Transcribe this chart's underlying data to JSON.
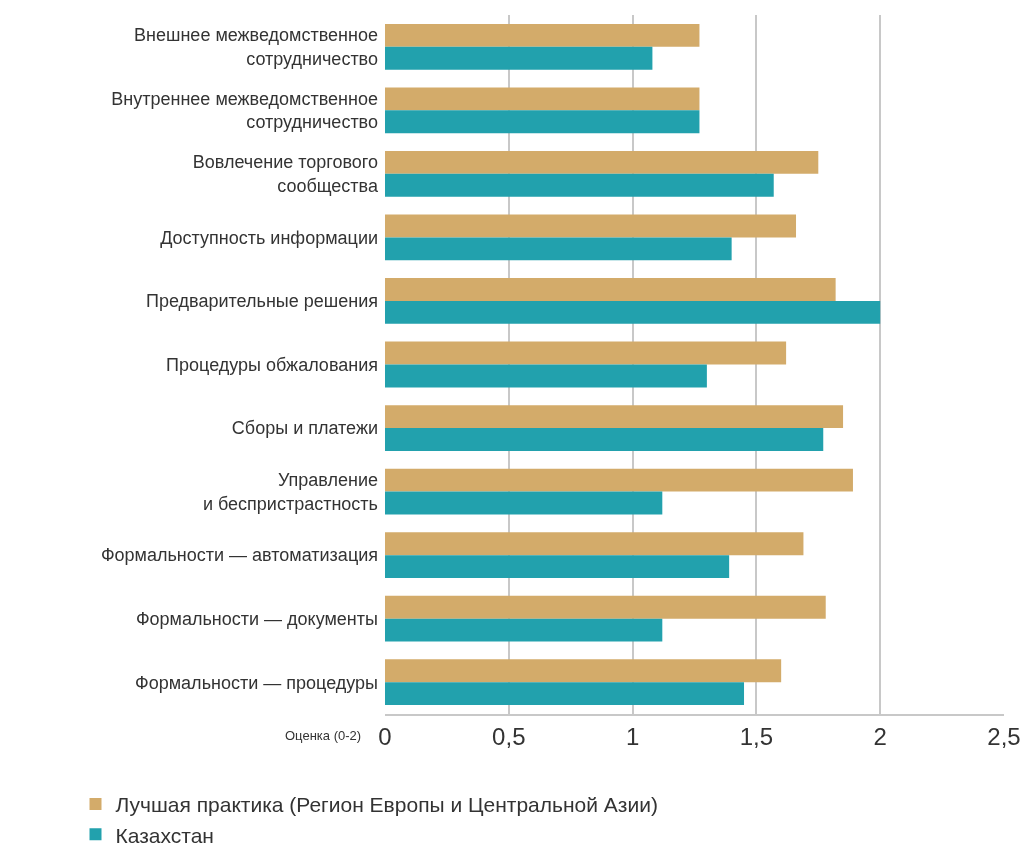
{
  "chart_data": {
    "type": "bar",
    "orientation": "horizontal",
    "xlabel": "Оценка (0-2)",
    "categories": [
      "Внешнее межведомственное\nсотрудничество",
      "Внутреннее межведомственное\nсотрудничество",
      "Вовлечение торгового\nсообщества",
      "Доступность информации",
      "Предварительные решения",
      "Процедуры обжалования",
      "Сборы и платежи",
      "Управление\nи беспристрастность",
      "Формальности — автоматизация",
      "Формальности — документы",
      "Формальности — процедуры"
    ],
    "series": [
      {
        "name": "Лучшая практика (Регион Европы и Центральной Азии)",
        "color": "#d3ab6a",
        "values": [
          1.27,
          1.27,
          1.75,
          1.66,
          1.82,
          1.62,
          1.85,
          1.89,
          1.69,
          1.78,
          1.6
        ]
      },
      {
        "name": "Казахстан",
        "color": "#22a1ad",
        "values": [
          1.08,
          1.27,
          1.57,
          1.4,
          2.0,
          1.3,
          1.77,
          1.12,
          1.39,
          1.12,
          1.45
        ]
      }
    ],
    "xlim": [
      0,
      2.5
    ],
    "xticks": [
      0,
      {
        "value": 0.5,
        "label": "0,5"
      },
      1,
      {
        "value": 1.5,
        "label": "1,5"
      },
      2,
      {
        "value": 2.5,
        "label": "2,5"
      }
    ],
    "grid": "x",
    "legend": "bottom"
  }
}
